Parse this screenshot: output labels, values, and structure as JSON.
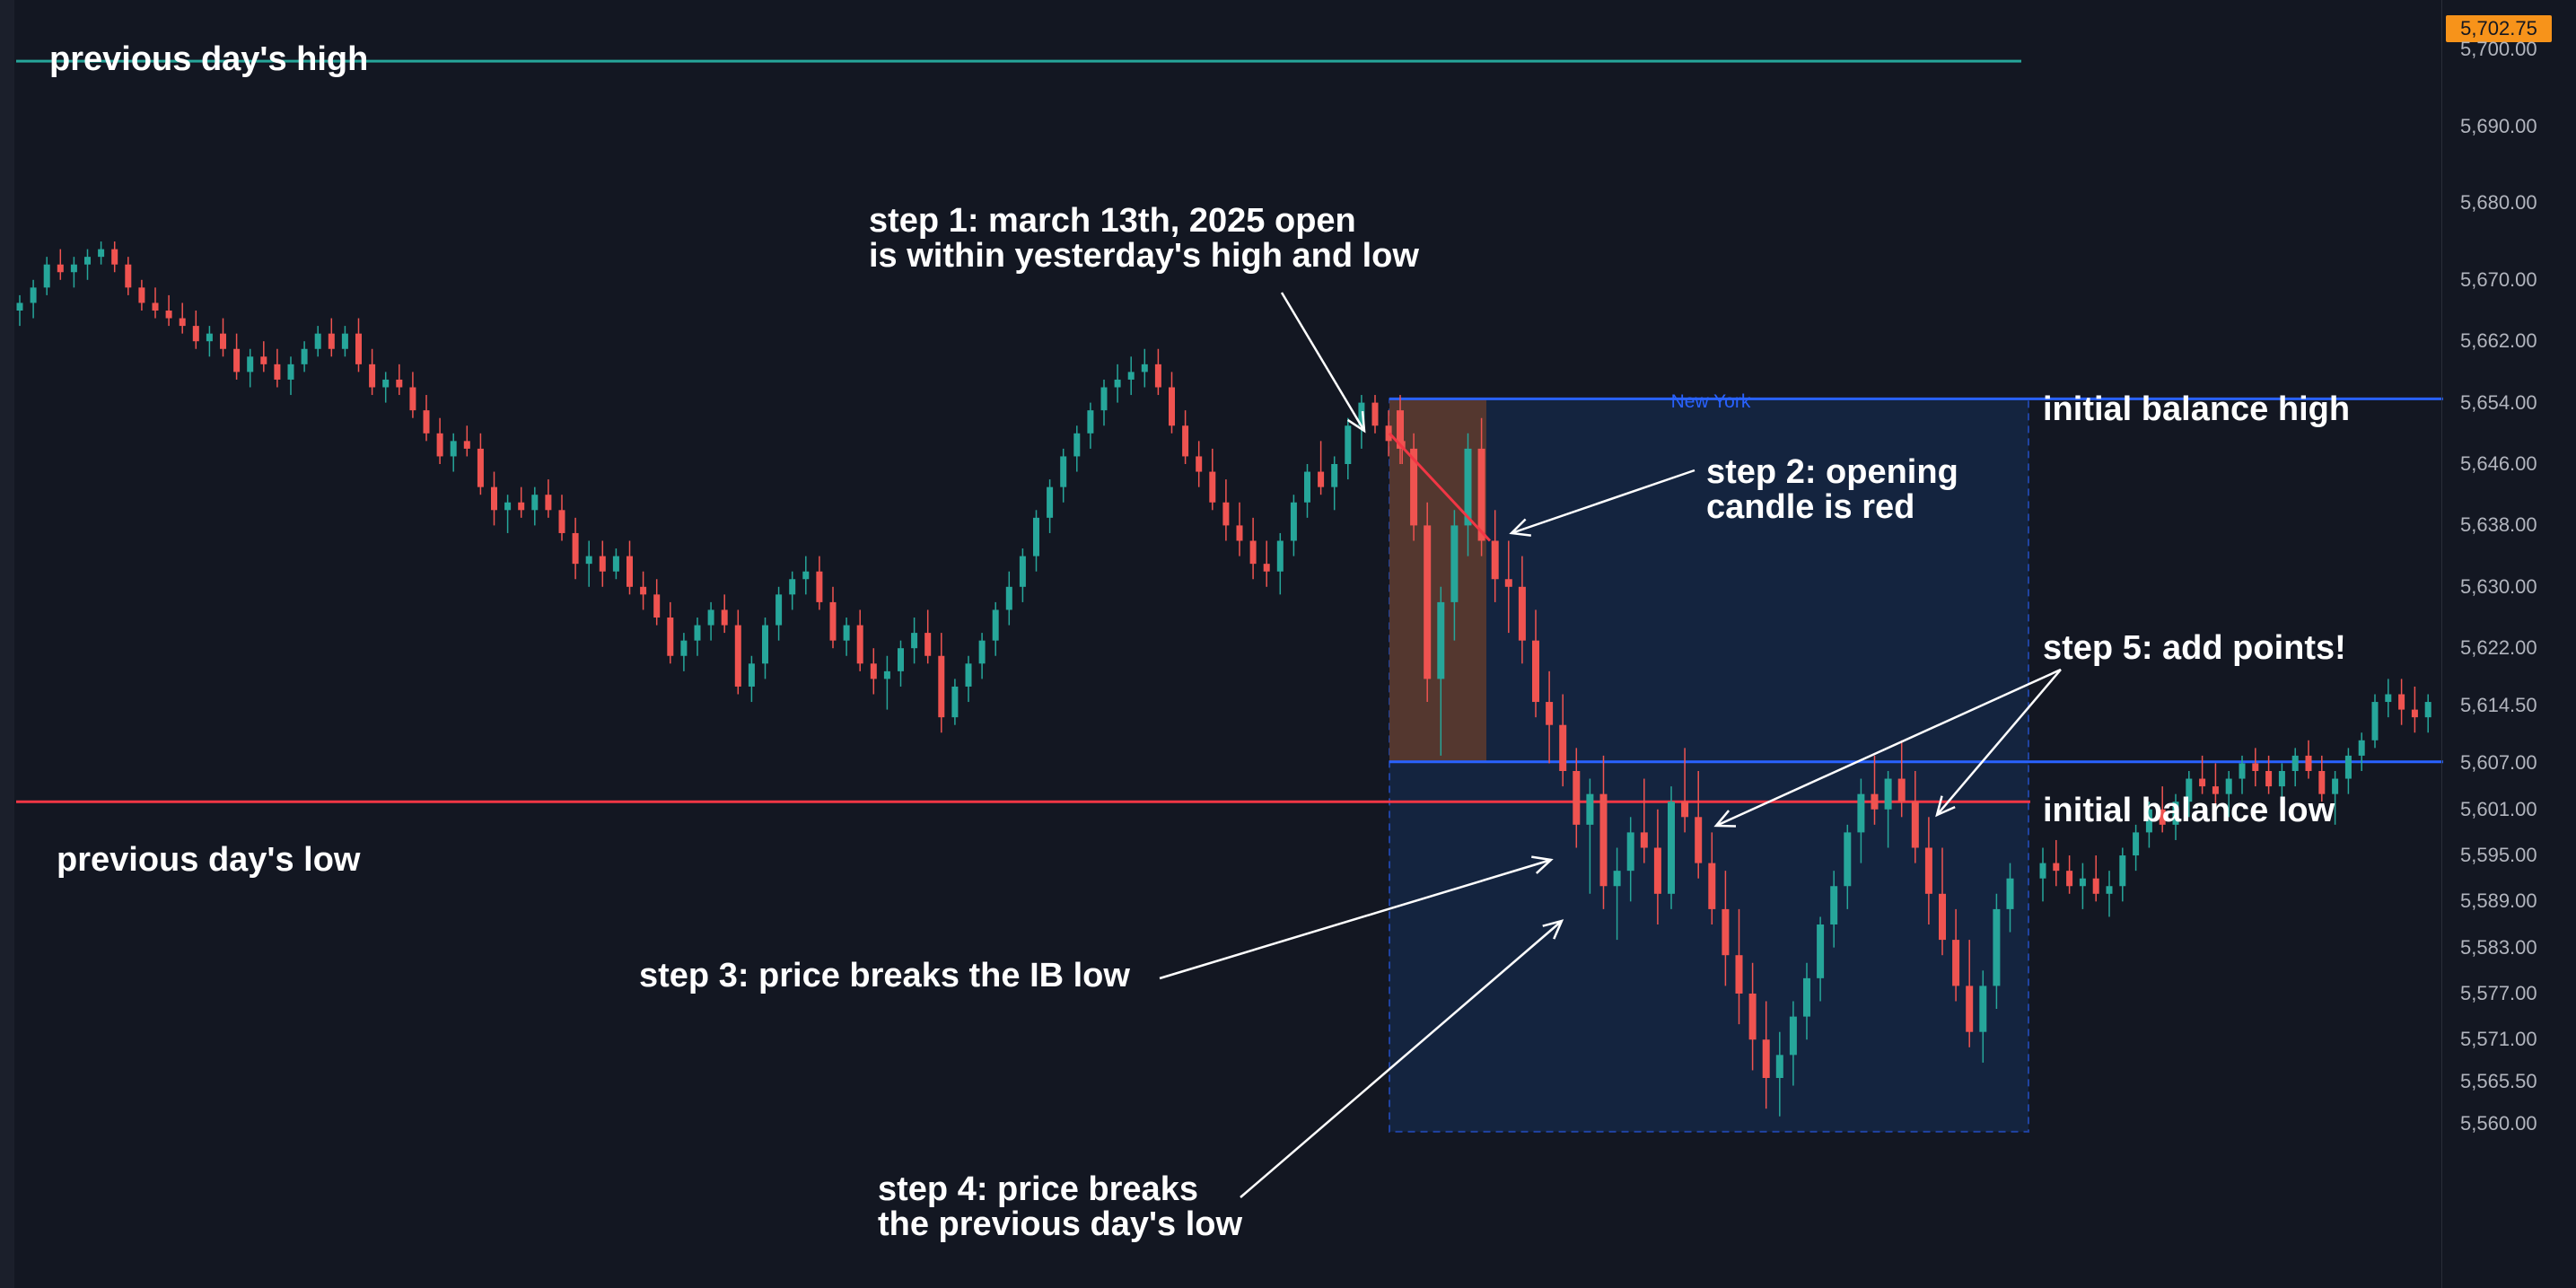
{
  "chart_data": {
    "type": "candlestick",
    "instrument_last_price": "5,702.75",
    "y_axis": {
      "ticks": [
        "5,700.00",
        "5,690.00",
        "5,680.00",
        "5,670.00",
        "5,662.00",
        "5,654.00",
        "5,646.00",
        "5,638.00",
        "5,630.00",
        "5,622.00",
        "5,614.50",
        "5,607.00",
        "5,601.00",
        "5,595.00",
        "5,589.00",
        "5,583.00",
        "5,577.00",
        "5,571.00",
        "5,565.50",
        "5,560.00"
      ],
      "ylim": [
        5560,
        5702
      ]
    },
    "session_label": "New York",
    "levels": {
      "previous_day_high": 5698.5,
      "previous_day_low": 5602.0,
      "initial_balance_high": 5654.5,
      "initial_balance_low": 5607.2
    },
    "candles": [
      [
        5666,
        5668,
        5664,
        5667
      ],
      [
        5667,
        5670,
        5665,
        5669
      ],
      [
        5669,
        5673,
        5668,
        5672
      ],
      [
        5672,
        5674,
        5670,
        5671
      ],
      [
        5671,
        5673,
        5669,
        5672
      ],
      [
        5672,
        5674,
        5670,
        5673
      ],
      [
        5673,
        5675,
        5672,
        5674
      ],
      [
        5674,
        5675,
        5671,
        5672
      ],
      [
        5672,
        5673,
        5668,
        5669
      ],
      [
        5669,
        5670,
        5666,
        5667
      ],
      [
        5667,
        5669,
        5665,
        5666
      ],
      [
        5666,
        5668,
        5664,
        5665
      ],
      [
        5665,
        5667,
        5663,
        5664
      ],
      [
        5664,
        5666,
        5661,
        5662
      ],
      [
        5662,
        5664,
        5660,
        5663
      ],
      [
        5663,
        5665,
        5660,
        5661
      ],
      [
        5661,
        5663,
        5657,
        5658
      ],
      [
        5658,
        5661,
        5656,
        5660
      ],
      [
        5660,
        5662,
        5658,
        5659
      ],
      [
        5659,
        5661,
        5656,
        5657
      ],
      [
        5657,
        5660,
        5655,
        5659
      ],
      [
        5659,
        5662,
        5658,
        5661
      ],
      [
        5661,
        5664,
        5660,
        5663
      ],
      [
        5663,
        5665,
        5660,
        5661
      ],
      [
        5661,
        5664,
        5660,
        5663
      ],
      [
        5663,
        5665,
        5658,
        5659
      ],
      [
        5659,
        5661,
        5655,
        5656
      ],
      [
        5656,
        5658,
        5654,
        5657
      ],
      [
        5657,
        5659,
        5655,
        5656
      ],
      [
        5656,
        5658,
        5652,
        5653
      ],
      [
        5653,
        5655,
        5649,
        5650
      ],
      [
        5650,
        5652,
        5646,
        5647
      ],
      [
        5647,
        5650,
        5645,
        5649
      ],
      [
        5649,
        5651,
        5647,
        5648
      ],
      [
        5648,
        5650,
        5642,
        5643
      ],
      [
        5643,
        5645,
        5638,
        5640
      ],
      [
        5640,
        5642,
        5637,
        5641
      ],
      [
        5641,
        5643,
        5639,
        5640
      ],
      [
        5640,
        5643,
        5638,
        5642
      ],
      [
        5642,
        5644,
        5639,
        5640
      ],
      [
        5640,
        5642,
        5636,
        5637
      ],
      [
        5637,
        5639,
        5631,
        5633
      ],
      [
        5633,
        5636,
        5630,
        5634
      ],
      [
        5634,
        5636,
        5630,
        5632
      ],
      [
        5632,
        5635,
        5631,
        5634
      ],
      [
        5634,
        5636,
        5629,
        5630
      ],
      [
        5630,
        5632,
        5627,
        5629
      ],
      [
        5629,
        5631,
        5625,
        5626
      ],
      [
        5626,
        5628,
        5620,
        5621
      ],
      [
        5621,
        5624,
        5619,
        5623
      ],
      [
        5623,
        5626,
        5621,
        5625
      ],
      [
        5625,
        5628,
        5623,
        5627
      ],
      [
        5627,
        5629,
        5624,
        5625
      ],
      [
        5625,
        5627,
        5616,
        5617
      ],
      [
        5617,
        5621,
        5615,
        5620
      ],
      [
        5620,
        5626,
        5618,
        5625
      ],
      [
        5625,
        5630,
        5623,
        5629
      ],
      [
        5629,
        5632,
        5627,
        5631
      ],
      [
        5631,
        5634,
        5629,
        5632
      ],
      [
        5632,
        5634,
        5627,
        5628
      ],
      [
        5628,
        5630,
        5622,
        5623
      ],
      [
        5623,
        5626,
        5621,
        5625
      ],
      [
        5625,
        5627,
        5619,
        5620
      ],
      [
        5620,
        5622,
        5616,
        5618
      ],
      [
        5618,
        5621,
        5614,
        5619
      ],
      [
        5619,
        5623,
        5617,
        5622
      ],
      [
        5622,
        5626,
        5620,
        5624
      ],
      [
        5624,
        5627,
        5620,
        5621
      ],
      [
        5621,
        5624,
        5611,
        5613
      ],
      [
        5613,
        5618,
        5612,
        5617
      ],
      [
        5617,
        5621,
        5615,
        5620
      ],
      [
        5620,
        5624,
        5618,
        5623
      ],
      [
        5623,
        5628,
        5621,
        5627
      ],
      [
        5627,
        5632,
        5625,
        5630
      ],
      [
        5630,
        5635,
        5628,
        5634
      ],
      [
        5634,
        5640,
        5632,
        5639
      ],
      [
        5639,
        5644,
        5637,
        5643
      ],
      [
        5643,
        5648,
        5641,
        5647
      ],
      [
        5647,
        5651,
        5645,
        5650
      ],
      [
        5650,
        5654,
        5648,
        5653
      ],
      [
        5653,
        5657,
        5651,
        5656
      ],
      [
        5656,
        5659,
        5654,
        5657
      ],
      [
        5657,
        5660,
        5655,
        5658
      ],
      [
        5658,
        5661,
        5656,
        5659
      ],
      [
        5659,
        5661,
        5655,
        5656
      ],
      [
        5656,
        5658,
        5650,
        5651
      ],
      [
        5651,
        5653,
        5646,
        5647
      ],
      [
        5647,
        5649,
        5643,
        5645
      ],
      [
        5645,
        5648,
        5640,
        5641
      ],
      [
        5641,
        5644,
        5636,
        5638
      ],
      [
        5638,
        5641,
        5634,
        5636
      ],
      [
        5636,
        5639,
        5631,
        5633
      ],
      [
        5633,
        5636,
        5630,
        5632
      ],
      [
        5632,
        5637,
        5629,
        5636
      ],
      [
        5636,
        5642,
        5634,
        5641
      ],
      [
        5641,
        5646,
        5639,
        5645
      ],
      [
        5645,
        5649,
        5642,
        5643
      ],
      [
        5643,
        5647,
        5640,
        5646
      ],
      [
        5646,
        5652,
        5644,
        5651
      ],
      [
        5651,
        5655,
        5648,
        5654
      ],
      [
        5654,
        5655,
        5650,
        5651
      ],
      [
        5651,
        5653,
        5647,
        5649
      ],
      [
        5649,
        5652,
        5646,
        5648
      ]
    ],
    "ny_candles": [
      [
        5653,
        5655,
        5646,
        5648
      ],
      [
        5648,
        5650,
        5636,
        5638
      ],
      [
        5638,
        5641,
        5615,
        5618
      ],
      [
        5618,
        5630,
        5608,
        5628
      ],
      [
        5628,
        5640,
        5623,
        5638
      ],
      [
        5638,
        5650,
        5634,
        5648
      ],
      [
        5648,
        5652,
        5634,
        5636
      ],
      [
        5636,
        5640,
        5628,
        5631
      ],
      [
        5631,
        5636,
        5624,
        5630
      ],
      [
        5630,
        5634,
        5620,
        5623
      ],
      [
        5623,
        5627,
        5613,
        5615
      ],
      [
        5615,
        5619,
        5607,
        5612
      ],
      [
        5612,
        5616,
        5604,
        5606
      ],
      [
        5606,
        5609,
        5596,
        5599
      ],
      [
        5599,
        5605,
        5590,
        5603
      ],
      [
        5603,
        5608,
        5588,
        5591
      ],
      [
        5591,
        5596,
        5584,
        5593
      ],
      [
        5593,
        5600,
        5589,
        5598
      ],
      [
        5598,
        5605,
        5594,
        5596
      ],
      [
        5596,
        5601,
        5586,
        5590
      ],
      [
        5590,
        5604,
        5588,
        5602
      ],
      [
        5602,
        5609,
        5598,
        5600
      ],
      [
        5600,
        5606,
        5592,
        5594
      ],
      [
        5594,
        5598,
        5586,
        5588
      ],
      [
        5588,
        5593,
        5578,
        5582
      ],
      [
        5582,
        5588,
        5573,
        5577
      ],
      [
        5577,
        5581,
        5567,
        5571
      ],
      [
        5571,
        5576,
        5562,
        5566
      ],
      [
        5566,
        5572,
        5561,
        5569
      ],
      [
        5569,
        5576,
        5565,
        5574
      ],
      [
        5574,
        5581,
        5571,
        5579
      ],
      [
        5579,
        5587,
        5576,
        5586
      ],
      [
        5586,
        5593,
        5583,
        5591
      ],
      [
        5591,
        5599,
        5588,
        5598
      ],
      [
        5598,
        5605,
        5594,
        5603
      ],
      [
        5603,
        5608,
        5599,
        5601
      ],
      [
        5601,
        5606,
        5596,
        5605
      ],
      [
        5605,
        5610,
        5600,
        5602
      ],
      [
        5602,
        5606,
        5594,
        5596
      ],
      [
        5596,
        5600,
        5586,
        5590
      ],
      [
        5590,
        5596,
        5582,
        5584
      ],
      [
        5584,
        5588,
        5576,
        5578
      ],
      [
        5578,
        5584,
        5570,
        5572
      ],
      [
        5572,
        5580,
        5568,
        5578
      ],
      [
        5578,
        5590,
        5575,
        5588
      ],
      [
        5588,
        5594,
        5585,
        5592
      ]
    ],
    "post_candles": [
      [
        5592,
        5596,
        5589,
        5594
      ],
      [
        5594,
        5597,
        5591,
        5593
      ],
      [
        5593,
        5595,
        5590,
        5591
      ],
      [
        5591,
        5594,
        5588,
        5592
      ],
      [
        5592,
        5595,
        5589,
        5590
      ],
      [
        5590,
        5593,
        5587,
        5591
      ],
      [
        5591,
        5596,
        5589,
        5595
      ],
      [
        5595,
        5599,
        5593,
        5598
      ],
      [
        5598,
        5602,
        5596,
        5601
      ],
      [
        5601,
        5604,
        5598,
        5599
      ],
      [
        5599,
        5603,
        5597,
        5602
      ],
      [
        5602,
        5606,
        5600,
        5605
      ],
      [
        5605,
        5608,
        5603,
        5604
      ],
      [
        5604,
        5607,
        5601,
        5603
      ],
      [
        5603,
        5606,
        5600,
        5605
      ],
      [
        5605,
        5608,
        5603,
        5607
      ],
      [
        5607,
        5609,
        5604,
        5606
      ],
      [
        5606,
        5608,
        5603,
        5604
      ],
      [
        5604,
        5607,
        5601,
        5606
      ],
      [
        5606,
        5609,
        5604,
        5608
      ],
      [
        5608,
        5610,
        5605,
        5606
      ],
      [
        5606,
        5608,
        5602,
        5603
      ],
      [
        5603,
        5606,
        5599,
        5605
      ],
      [
        5605,
        5609,
        5603,
        5608
      ],
      [
        5608,
        5611,
        5606,
        5610
      ],
      [
        5610,
        5616,
        5609,
        5615
      ],
      [
        5615,
        5618,
        5613,
        5616
      ],
      [
        5616,
        5618,
        5612,
        5614
      ],
      [
        5614,
        5617,
        5611,
        5613
      ],
      [
        5613,
        5616,
        5611,
        5615
      ]
    ]
  },
  "labels": {
    "prev_high": "previous day's high",
    "prev_low": "previous day's low",
    "ib_high": "initial balance high",
    "ib_low": "initial balance low",
    "step1_line1": "step 1: march 13th, 2025 open",
    "step1_line2": "is within yesterday's high and low",
    "step2_line1": "step 2: opening",
    "step2_line2": "candle is red",
    "step3": "step 3: price breaks the IB low",
    "step4_line1": "step 4: price breaks",
    "step4_line2": "the previous day's low",
    "step5": "step 5: add points!"
  },
  "colors": {
    "background": "#131722",
    "bull": "#26a69a",
    "bear": "#ef5350",
    "prev_high_line": "#26a69a",
    "prev_low_line": "#f23645",
    "ib_line": "#2962ff",
    "session_fill": "#14243f",
    "opening_range_fill": "#5b3a2e"
  }
}
